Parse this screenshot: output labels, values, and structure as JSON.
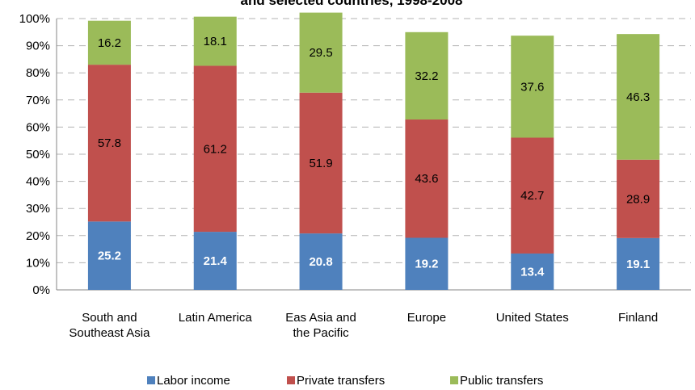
{
  "chart_data": {
    "type": "bar",
    "stacked": true,
    "title": "and selected countries, 1998-2008",
    "categories": [
      [
        "South and",
        "Southeast Asia"
      ],
      [
        "Latin America"
      ],
      [
        "Eas Asia and",
        "the Pacific"
      ],
      [
        "Europe"
      ],
      [
        "United States"
      ],
      [
        "Finland"
      ]
    ],
    "series": [
      {
        "name": "Labor income",
        "color": "#4f81bd",
        "values": [
          25.2,
          21.4,
          20.8,
          19.2,
          13.4,
          19.1
        ]
      },
      {
        "name": "Private transfers",
        "color": "#c0504d",
        "values": [
          57.8,
          61.2,
          51.9,
          43.6,
          42.7,
          28.9
        ]
      },
      {
        "name": "Public transfers",
        "color": "#9bbb59",
        "values": [
          16.2,
          18.1,
          29.5,
          32.2,
          37.6,
          46.3
        ]
      }
    ],
    "y_ticks": [
      "0%",
      "10%",
      "20%",
      "30%",
      "40%",
      "50%",
      "60%",
      "70%",
      "80%",
      "90%",
      "100%"
    ],
    "ylim": [
      0,
      100
    ],
    "grid": "dashed horizontal",
    "legend_position": "bottom"
  }
}
